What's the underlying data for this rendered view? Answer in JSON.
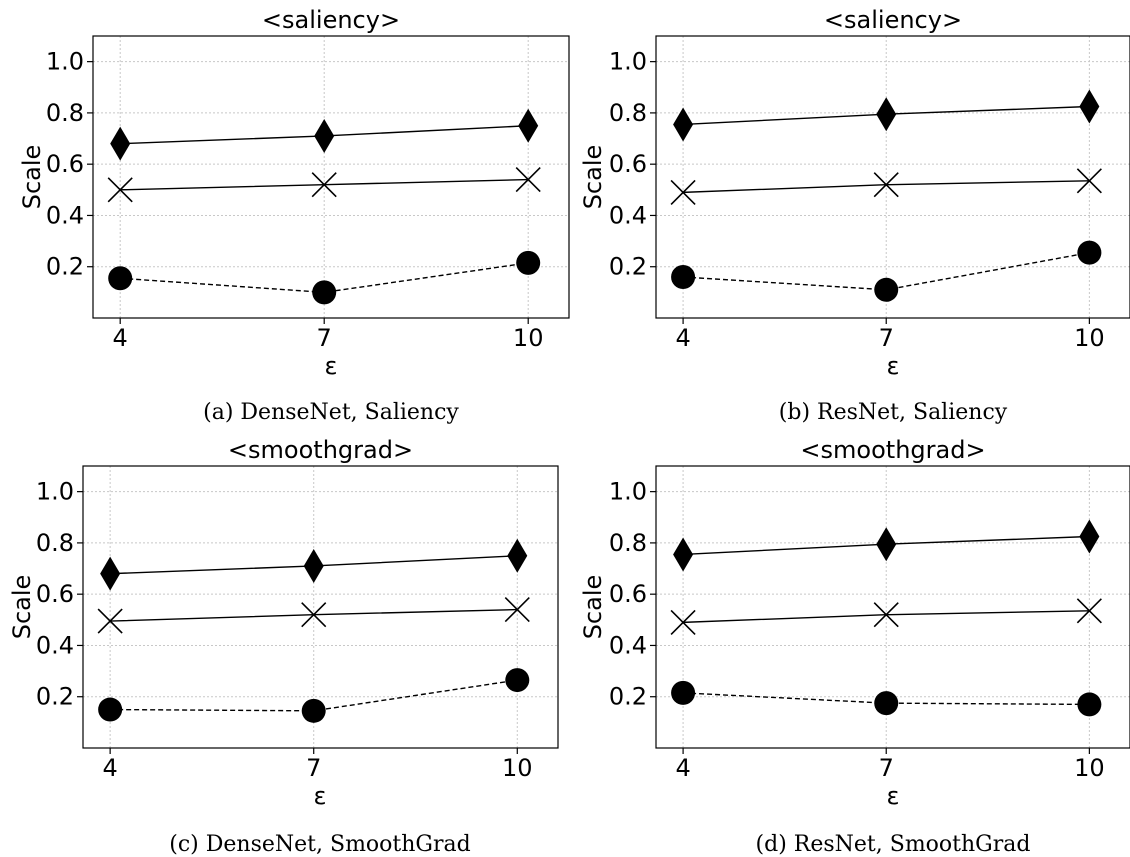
{
  "chart_data": [
    {
      "type": "line",
      "title": "<saliency>",
      "xlabel": "ε",
      "ylabel": "Scale",
      "caption": "(a) DenseNet, Saliency",
      "x": [
        4,
        7,
        10
      ],
      "ylim": [
        0.0,
        1.1
      ],
      "yticks": [
        "0.2",
        "0.4",
        "0.6",
        "0.8",
        "1.0"
      ],
      "xticks": [
        "4",
        "7",
        "10"
      ],
      "grid": true,
      "series": [
        {
          "marker": "diamond",
          "line": "solid",
          "values": [
            0.68,
            0.71,
            0.75
          ]
        },
        {
          "marker": "x",
          "line": "solid",
          "values": [
            0.5,
            0.52,
            0.54
          ]
        },
        {
          "marker": "circle",
          "line": "dashed",
          "values": [
            0.155,
            0.1,
            0.215
          ]
        }
      ]
    },
    {
      "type": "line",
      "title": "<saliency>",
      "xlabel": "ε",
      "ylabel": "Scale",
      "caption": "(b) ResNet, Saliency",
      "x": [
        4,
        7,
        10
      ],
      "ylim": [
        0.0,
        1.1
      ],
      "yticks": [
        "0.2",
        "0.4",
        "0.6",
        "0.8",
        "1.0"
      ],
      "xticks": [
        "4",
        "7",
        "10"
      ],
      "grid": true,
      "series": [
        {
          "marker": "diamond",
          "line": "solid",
          "values": [
            0.755,
            0.795,
            0.825
          ]
        },
        {
          "marker": "x",
          "line": "solid",
          "values": [
            0.49,
            0.52,
            0.535
          ]
        },
        {
          "marker": "circle",
          "line": "dashed",
          "values": [
            0.16,
            0.11,
            0.255
          ]
        }
      ]
    },
    {
      "type": "line",
      "title": "<smoothgrad>",
      "xlabel": "ε",
      "ylabel": "Scale",
      "caption": "(c) DenseNet, SmoothGrad",
      "x": [
        4,
        7,
        10
      ],
      "ylim": [
        0.0,
        1.1
      ],
      "yticks": [
        "0.2",
        "0.4",
        "0.6",
        "0.8",
        "1.0"
      ],
      "xticks": [
        "4",
        "7",
        "10"
      ],
      "grid": true,
      "series": [
        {
          "marker": "diamond",
          "line": "solid",
          "values": [
            0.68,
            0.71,
            0.75
          ]
        },
        {
          "marker": "x",
          "line": "solid",
          "values": [
            0.495,
            0.52,
            0.54
          ]
        },
        {
          "marker": "circle",
          "line": "dashed",
          "values": [
            0.15,
            0.145,
            0.265
          ]
        }
      ]
    },
    {
      "type": "line",
      "title": "<smoothgrad>",
      "xlabel": "ε",
      "ylabel": "Scale",
      "caption": "(d) ResNet, SmoothGrad",
      "x": [
        4,
        7,
        10
      ],
      "ylim": [
        0.0,
        1.1
      ],
      "yticks": [
        "0.2",
        "0.4",
        "0.6",
        "0.8",
        "1.0"
      ],
      "xticks": [
        "4",
        "7",
        "10"
      ],
      "grid": true,
      "series": [
        {
          "marker": "diamond",
          "line": "solid",
          "values": [
            0.755,
            0.795,
            0.825
          ]
        },
        {
          "marker": "x",
          "line": "solid",
          "values": [
            0.49,
            0.52,
            0.535
          ]
        },
        {
          "marker": "circle",
          "line": "dashed",
          "values": [
            0.215,
            0.175,
            0.17
          ]
        }
      ]
    }
  ]
}
